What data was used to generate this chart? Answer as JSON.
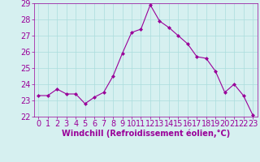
{
  "x": [
    0,
    1,
    2,
    3,
    4,
    5,
    6,
    7,
    8,
    9,
    10,
    11,
    12,
    13,
    14,
    15,
    16,
    17,
    18,
    19,
    20,
    21,
    22,
    23
  ],
  "y": [
    23.3,
    23.3,
    23.7,
    23.4,
    23.4,
    22.8,
    23.2,
    23.5,
    24.5,
    25.9,
    27.2,
    27.4,
    28.9,
    27.9,
    27.5,
    27.0,
    26.5,
    25.7,
    25.6,
    24.8,
    23.5,
    24.0,
    23.3,
    22.1
  ],
  "line_color": "#990099",
  "marker": "D",
  "marker_size": 2,
  "bg_color": "#d6f0f0",
  "grid_color": "#aadddd",
  "xlabel": "Windchill (Refroidissement éolien,°C)",
  "xlabel_color": "#990099",
  "tick_color": "#990099",
  "ylim": [
    22,
    29
  ],
  "xlim": [
    -0.5,
    23.5
  ],
  "yticks": [
    22,
    23,
    24,
    25,
    26,
    27,
    28,
    29
  ],
  "xticks": [
    0,
    1,
    2,
    3,
    4,
    5,
    6,
    7,
    8,
    9,
    10,
    11,
    12,
    13,
    14,
    15,
    16,
    17,
    18,
    19,
    20,
    21,
    22,
    23
  ],
  "tick_fontsize": 7,
  "xlabel_fontsize": 7
}
